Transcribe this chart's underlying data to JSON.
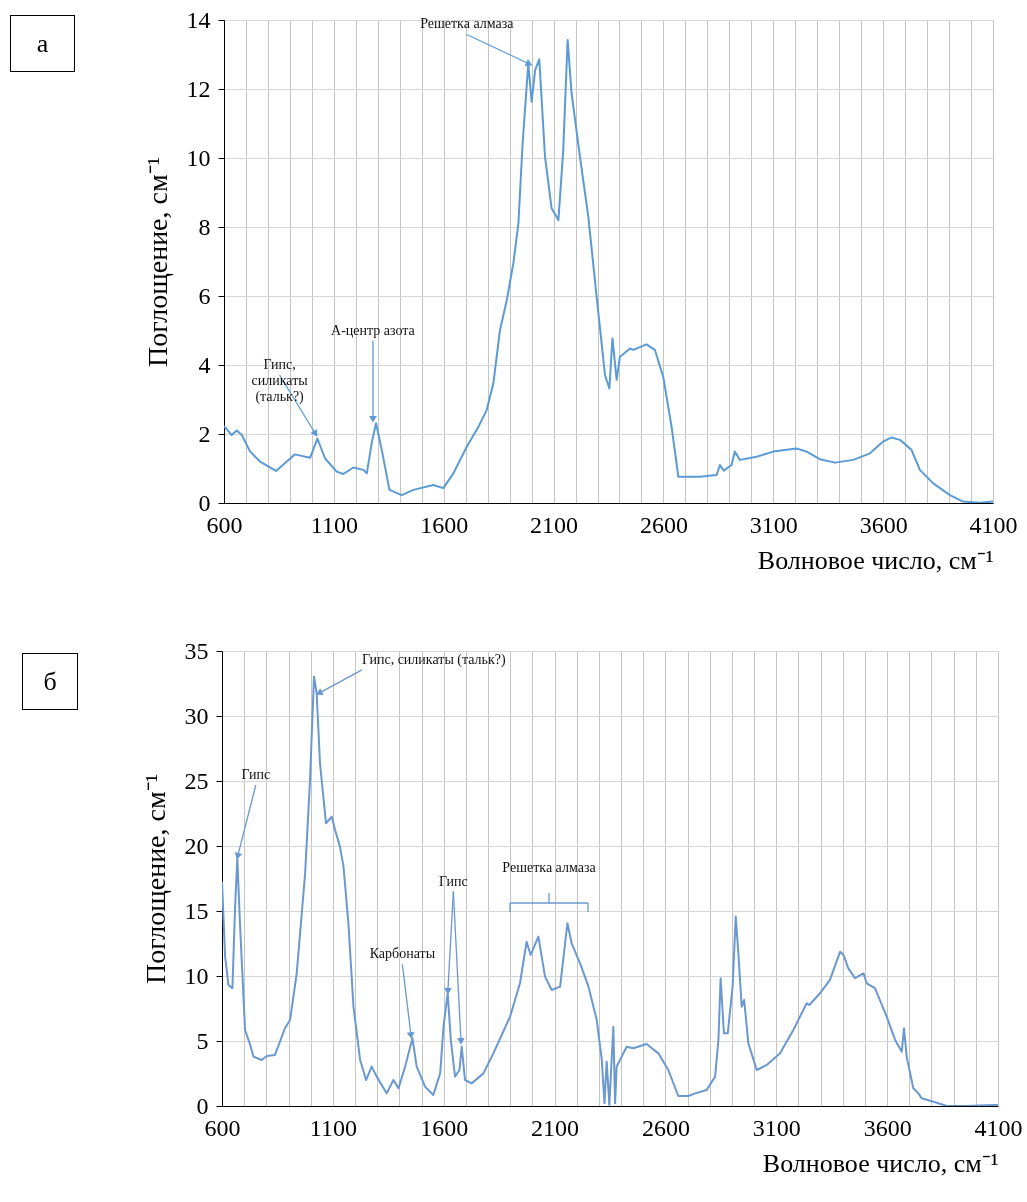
{
  "chart_data": [
    {
      "type": "line",
      "title": "а",
      "xlabel": "Волновое число, см⁻¹",
      "ylabel": "Поглощение, см⁻¹",
      "color": "#5b9bd5",
      "grid": true,
      "xlim": [
        600,
        4100
      ],
      "ylim": [
        0,
        14
      ],
      "yticks": [
        0,
        2,
        4,
        6,
        8,
        10,
        12,
        14
      ],
      "xticks": [
        600,
        {
          "value": 700,
          "label": null
        },
        {
          "value": 800,
          "label": null
        },
        {
          "value": 900,
          "label": null
        },
        {
          "value": 1000,
          "label": null
        },
        1100,
        {
          "value": 1200,
          "label": null
        },
        {
          "value": 1300,
          "label": null
        },
        {
          "value": 1400,
          "label": null
        },
        {
          "value": 1500,
          "label": null
        },
        1600,
        {
          "value": 1700,
          "label": null
        },
        {
          "value": 1800,
          "label": null
        },
        {
          "value": 1900,
          "label": null
        },
        {
          "value": 2000,
          "label": null
        },
        2100,
        {
          "value": 2200,
          "label": null
        },
        {
          "value": 2300,
          "label": null
        },
        {
          "value": 2400,
          "label": null
        },
        {
          "value": 2500,
          "label": null
        },
        2600,
        {
          "value": 2700,
          "label": null
        },
        {
          "value": 2800,
          "label": null
        },
        {
          "value": 2900,
          "label": null
        },
        {
          "value": 3000,
          "label": null
        },
        3100,
        {
          "value": 3200,
          "label": null
        },
        {
          "value": 3300,
          "label": null
        },
        {
          "value": 3400,
          "label": null
        },
        {
          "value": 3500,
          "label": null
        },
        3600,
        {
          "value": 3700,
          "label": null
        },
        {
          "value": 3800,
          "label": null
        },
        {
          "value": 3900,
          "label": null
        },
        {
          "value": 4000,
          "label": null
        },
        4100
      ],
      "x": [
        600,
        635,
        658,
        681,
        719,
        764,
        837,
        923,
        992,
        1025,
        1060,
        1113,
        1143,
        1189,
        1234,
        1250,
        1272,
        1292,
        1318,
        1353,
        1409,
        1462,
        1553,
        1598,
        1644,
        1705,
        1758,
        1796,
        1826,
        1856,
        1887,
        1917,
        1940,
        1959,
        1985,
        2000,
        2016,
        2035,
        2061,
        2091,
        2122,
        2144,
        2164,
        2182,
        2220,
        2258,
        2296,
        2334,
        2354,
        2368,
        2387,
        2402,
        2448,
        2463,
        2523,
        2561,
        2599,
        2637,
        2668,
        2766,
        2842,
        2857,
        2875,
        2910,
        2925,
        2948,
        3024,
        3100,
        3206,
        3252,
        3312,
        3381,
        3464,
        3540,
        3600,
        3638,
        3676,
        3729,
        3767,
        3828,
        3904,
        3964,
        4040,
        4100
      ],
      "values": [
        2.23,
        1.97,
        2.1,
        1.97,
        1.49,
        1.2,
        0.93,
        1.41,
        1.31,
        1.87,
        1.29,
        0.91,
        0.84,
        1.03,
        0.96,
        0.86,
        1.73,
        2.31,
        1.54,
        0.38,
        0.23,
        0.38,
        0.52,
        0.43,
        0.86,
        1.63,
        2.21,
        2.7,
        3.47,
        5.01,
        5.88,
        6.95,
        8.11,
        10.42,
        12.74,
        11.63,
        12.55,
        12.86,
        10.04,
        8.54,
        8.2,
        10.23,
        13.42,
        11.87,
        10.04,
        8.3,
        5.98,
        3.71,
        3.32,
        4.77,
        3.57,
        4.24,
        4.48,
        4.44,
        4.6,
        4.44,
        3.66,
        2.21,
        0.76,
        0.76,
        0.81,
        1.1,
        0.94,
        1.1,
        1.49,
        1.25,
        1.34,
        1.49,
        1.58,
        1.49,
        1.27,
        1.17,
        1.25,
        1.44,
        1.78,
        1.9,
        1.83,
        1.54,
        0.96,
        0.57,
        0.23,
        0.04,
        0.01,
        0.04
      ],
      "annotations": [
        {
          "text": "Решетка алмаза",
          "x": 1985,
          "y": 12.74
        },
        {
          "text": "Гипс,\nсиликаты\n(тальк?)",
          "x": 1014,
          "y": 2.03
        },
        {
          "text": "А-центр азота",
          "x": 1278,
          "y": 2.46
        }
      ]
    },
    {
      "type": "line",
      "title": "б",
      "xlabel": "Волновое число, см⁻¹",
      "ylabel": "Поглощение, см⁻¹",
      "color": "#6a98d0",
      "grid": true,
      "xlim": [
        600,
        4100
      ],
      "ylim": [
        0,
        35
      ],
      "yticks": [
        0,
        5,
        10,
        15,
        20,
        25,
        30,
        35
      ],
      "xticks": [
        600,
        {
          "value": 700,
          "label": null
        },
        {
          "value": 800,
          "label": null
        },
        {
          "value": 900,
          "label": null
        },
        {
          "value": 1000,
          "label": null
        },
        1100,
        {
          "value": 1200,
          "label": null
        },
        {
          "value": 1300,
          "label": null
        },
        {
          "value": 1400,
          "label": null
        },
        {
          "value": 1500,
          "label": null
        },
        1600,
        {
          "value": 1700,
          "label": null
        },
        {
          "value": 1800,
          "label": null
        },
        {
          "value": 1900,
          "label": null
        },
        {
          "value": 2000,
          "label": null
        },
        2100,
        {
          "value": 2200,
          "label": null
        },
        {
          "value": 2300,
          "label": null
        },
        {
          "value": 2400,
          "label": null
        },
        {
          "value": 2500,
          "label": null
        },
        2600,
        {
          "value": 2700,
          "label": null
        },
        {
          "value": 2800,
          "label": null
        },
        {
          "value": 2900,
          "label": null
        },
        {
          "value": 3000,
          "label": null
        },
        3100,
        {
          "value": 3200,
          "label": null
        },
        {
          "value": 3300,
          "label": null
        },
        {
          "value": 3400,
          "label": null
        },
        {
          "value": 3500,
          "label": null
        },
        3600,
        {
          "value": 3700,
          "label": null
        },
        {
          "value": 3800,
          "label": null
        },
        {
          "value": 3900,
          "label": null
        },
        {
          "value": 4000,
          "label": null
        },
        4100
      ],
      "x": [
        600,
        614,
        629,
        647,
        659,
        669,
        681,
        704,
        727,
        742,
        779,
        802,
        839,
        884,
        907,
        937,
        975,
        997,
        1015,
        1027,
        1042,
        1069,
        1095,
        1110,
        1132,
        1148,
        1170,
        1193,
        1223,
        1250,
        1275,
        1298,
        1343,
        1373,
        1396,
        1426,
        1459,
        1478,
        1516,
        1553,
        1584,
        1599,
        1618,
        1632,
        1651,
        1671,
        1681,
        1696,
        1726,
        1779,
        1824,
        1899,
        1944,
        1974,
        1992,
        2027,
        2057,
        2087,
        2125,
        2158,
        2177,
        2215,
        2253,
        2290,
        2313,
        2325,
        2335,
        2347,
        2365,
        2373,
        2380,
        2425,
        2455,
        2515,
        2568,
        2613,
        2658,
        2703,
        2734,
        2786,
        2824,
        2839,
        2849,
        2864,
        2881,
        2903,
        2917,
        2929,
        2944,
        2955,
        2974,
        3012,
        3057,
        3117,
        3177,
        3237,
        3249,
        3297,
        3342,
        3388,
        3403,
        3425,
        3455,
        3493,
        3508,
        3545,
        3598,
        3636,
        3666,
        3676,
        3688,
        3718,
        3741,
        3756,
        3809,
        3869,
        3959,
        4079,
        4099
      ],
      "values": [
        17.26,
        11.5,
        9.31,
        9.06,
        15.3,
        19.06,
        14.06,
        5.85,
        4.7,
        3.8,
        3.54,
        3.85,
        3.93,
        5.98,
        6.62,
        10.21,
        17.9,
        25.1,
        33.03,
        31.75,
        26.36,
        21.75,
        22.26,
        21.23,
        19.95,
        18.41,
        14.06,
        7.64,
        3.54,
        2.0,
        3.03,
        2.26,
        0.97,
        2.0,
        1.36,
        3.03,
        5.21,
        3.03,
        1.49,
        0.85,
        2.51,
        6.1,
        8.67,
        5.08,
        2.26,
        2.77,
        4.56,
        2.0,
        1.74,
        2.51,
        4.05,
        6.87,
        9.44,
        12.64,
        11.62,
        13.03,
        9.95,
        8.92,
        9.18,
        14.06,
        12.51,
        10.97,
        9.18,
        6.62,
        3.54,
        0.21,
        3.41,
        0.08,
        6.1,
        0.21,
        3.03,
        4.56,
        4.44,
        4.77,
        4.05,
        2.77,
        0.77,
        0.77,
        0.97,
        1.23,
        2.26,
        5.08,
        9.83,
        5.59,
        5.59,
        9.18,
        14.57,
        11.74,
        7.64,
        8.15,
        4.82,
        2.77,
        3.16,
        4.05,
        5.85,
        7.9,
        7.77,
        8.67,
        9.7,
        11.87,
        11.62,
        10.59,
        9.83,
        10.21,
        9.44,
        9.06,
        6.87,
        5.08,
        4.18,
        5.98,
        3.8,
        1.36,
        0.97,
        0.59,
        0.33,
        0,
        0,
        0.08,
        0.08
      ],
      "annotations": [
        {
          "text": "Гипс",
          "x": 672,
          "y": 19.3
        },
        {
          "text": "Гипс, силикаты (тальк?)",
          "x": 1042,
          "y": 31.8
        },
        {
          "text": "Карбонаты",
          "x": 1452,
          "y": 5.5
        },
        {
          "text": "Гипс",
          "x": 1619,
          "y": 8.9
        },
        "Решетка алмаза"
      ]
    }
  ]
}
